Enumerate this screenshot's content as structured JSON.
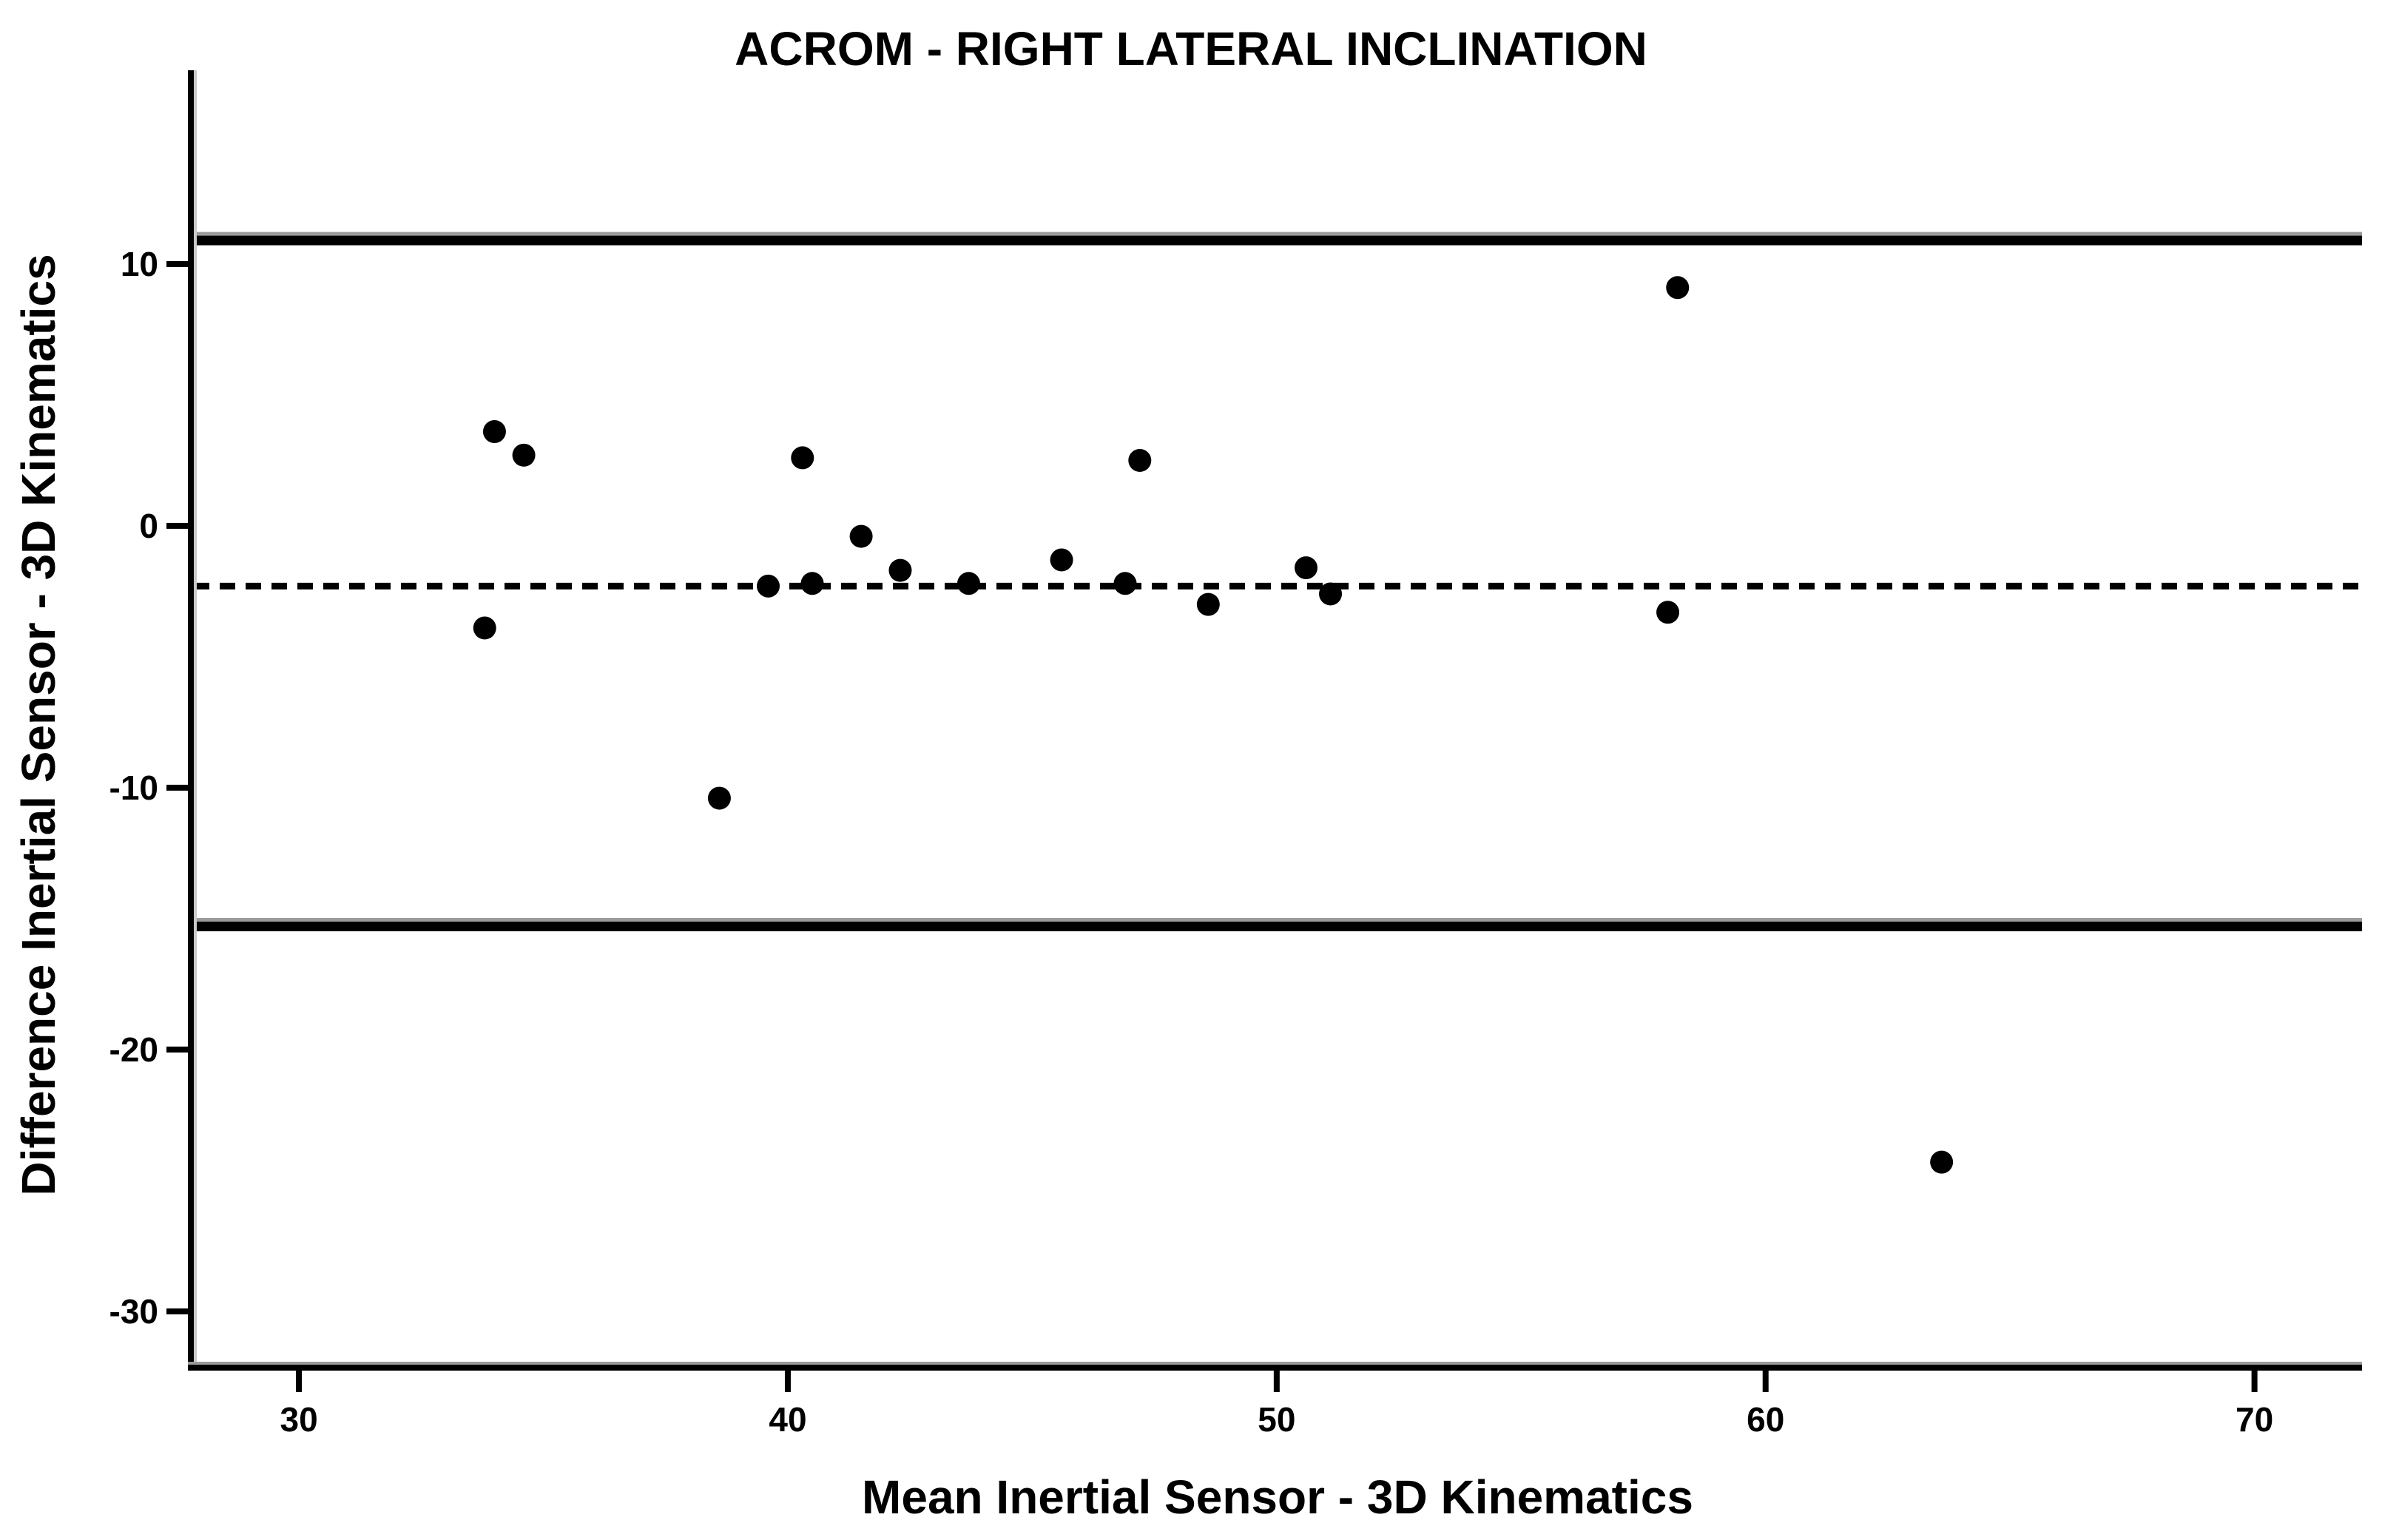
{
  "chart_data": {
    "type": "scatter",
    "title": "ACROM - RIGHT LATERAL INCLINATION",
    "xlabel": "Mean Inertial Sensor - 3D Kinematics",
    "ylabel": "Difference Inertial Sensor - 3D Kinematics",
    "x_ticks": [
      30,
      40,
      50,
      60,
      70
    ],
    "y_ticks": [
      10,
      0,
      -10,
      -20,
      -30
    ],
    "xlim": [
      27.85,
      72.2
    ],
    "ylim": [
      -32.15,
      17.4
    ],
    "grid": false,
    "legend": "none",
    "points": [
      [
        34.0,
        3.6
      ],
      [
        34.6,
        2.7
      ],
      [
        33.8,
        -3.9
      ],
      [
        38.6,
        -10.4
      ],
      [
        39.6,
        -2.3
      ],
      [
        40.3,
        2.6
      ],
      [
        40.5,
        -2.2
      ],
      [
        41.5,
        -0.4
      ],
      [
        42.3,
        -1.7
      ],
      [
        43.7,
        -2.2
      ],
      [
        45.6,
        -1.3
      ],
      [
        46.9,
        -2.2
      ],
      [
        47.2,
        2.5
      ],
      [
        48.6,
        -3.0
      ],
      [
        50.6,
        -1.6
      ],
      [
        51.1,
        -2.6
      ],
      [
        58.0,
        -3.3
      ],
      [
        58.2,
        9.1
      ],
      [
        63.6,
        -24.3
      ]
    ],
    "reference_lines": {
      "upper_loa": 10.9,
      "mean": -2.3,
      "lower_loa": -15.3
    },
    "colors": {
      "point": "#000000",
      "line": "#000000",
      "halo": "#9b9b9b",
      "background": "#ffffff"
    }
  }
}
